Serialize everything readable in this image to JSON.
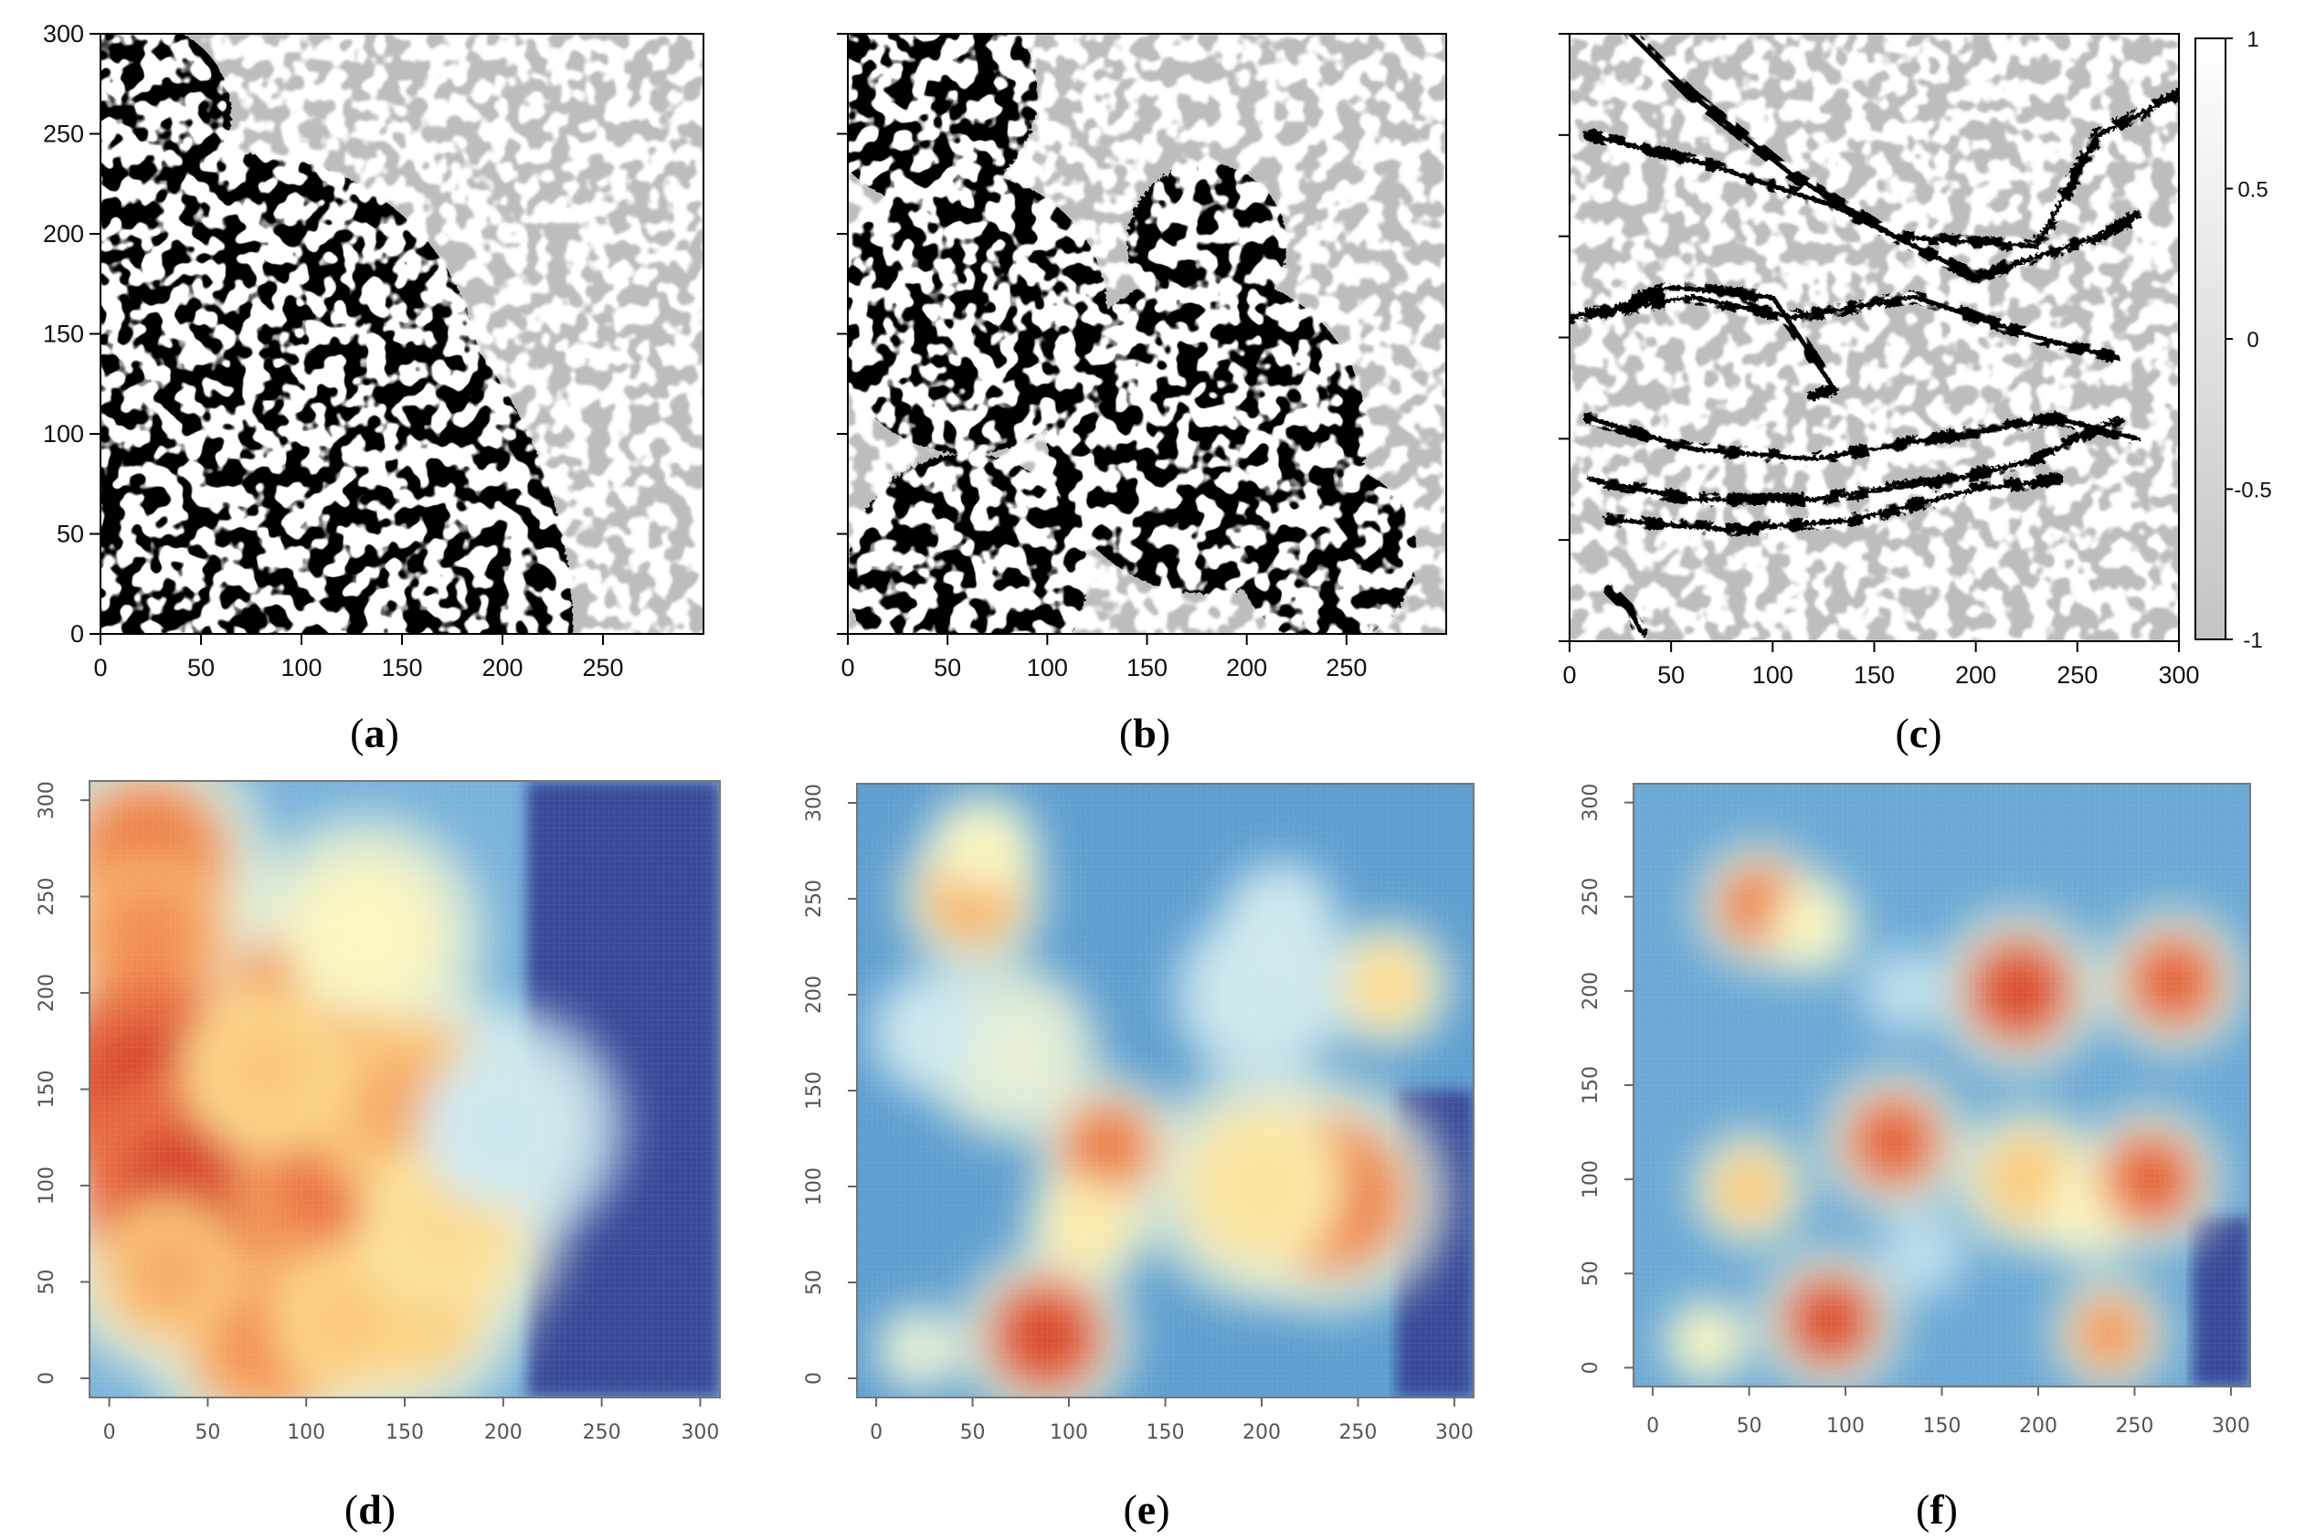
{
  "chart_data": [
    {
      "type": "heatmap",
      "panel": "(a)",
      "xticks": [
        "0",
        "50",
        "100",
        "150",
        "200",
        "250"
      ],
      "yticks": [
        "0",
        "50",
        "100",
        "150",
        "200",
        "250",
        "300"
      ],
      "xlim": [
        0,
        300
      ],
      "ylim": [
        0,
        300
      ],
      "colormap": "grayscale",
      "pattern": "labyrinthine stripes",
      "blobs": [
        {
          "x": 70,
          "y": 120,
          "r": 120,
          "v": 1
        },
        {
          "x": 20,
          "y": 260,
          "r": 45,
          "v": 1
        },
        {
          "x": 150,
          "y": 60,
          "r": 60,
          "v": 0.9
        }
      ],
      "edge": {
        "cx": 0,
        "cy": 0,
        "r": 235
      }
    },
    {
      "type": "heatmap",
      "panel": "(b)",
      "xticks": [
        "0",
        "50",
        "100",
        "150",
        "200",
        "250"
      ],
      "yticks": [],
      "xlim": [
        0,
        300
      ],
      "ylim": [
        0,
        300
      ],
      "colormap": "grayscale",
      "pattern": "labyrinthine stripes",
      "blobs": [
        {
          "x": 40,
          "y": 270,
          "r": 55,
          "v": 1
        },
        {
          "x": 60,
          "y": 160,
          "r": 70,
          "v": 1
        },
        {
          "x": 180,
          "y": 100,
          "r": 80,
          "v": 1
        },
        {
          "x": 60,
          "y": 30,
          "r": 60,
          "v": 1
        },
        {
          "x": 240,
          "y": 40,
          "r": 45,
          "v": 0.9
        },
        {
          "x": 180,
          "y": 195,
          "r": 40,
          "v": 0.8
        }
      ]
    },
    {
      "type": "heatmap",
      "panel": "(c)",
      "xticks": [
        "0",
        "50",
        "100",
        "150",
        "200",
        "250",
        "300"
      ],
      "yticks": [],
      "xlim": [
        0,
        300
      ],
      "ylim": [
        0,
        300
      ],
      "colormap": "grayscale",
      "pattern": "labyrinthine stripes",
      "colorbar": {
        "ticks": [
          "1",
          "0.5",
          "0",
          "-0.5",
          "-1"
        ],
        "range": [
          -1,
          1
        ]
      },
      "paths": [
        [
          [
            30,
            300
          ],
          [
            60,
            270
          ],
          [
            110,
            230
          ],
          [
            160,
            200
          ],
          [
            230,
            195
          ],
          [
            260,
            250
          ],
          [
            300,
            270
          ]
        ],
        [
          [
            10,
            250
          ],
          [
            70,
            235
          ],
          [
            130,
            215
          ],
          [
            200,
            180
          ],
          [
            260,
            200
          ],
          [
            280,
            210
          ]
        ],
        [
          [
            0,
            160
          ],
          [
            60,
            170
          ],
          [
            110,
            160
          ],
          [
            170,
            170
          ],
          [
            230,
            150
          ],
          [
            270,
            140
          ]
        ],
        [
          [
            10,
            160
          ],
          [
            50,
            175
          ],
          [
            100,
            170
          ],
          [
            130,
            125
          ],
          [
            120,
            120
          ]
        ],
        [
          [
            10,
            110
          ],
          [
            60,
            95
          ],
          [
            120,
            90
          ],
          [
            180,
            100
          ],
          [
            240,
            110
          ],
          [
            280,
            100
          ]
        ],
        [
          [
            10,
            80
          ],
          [
            60,
            70
          ],
          [
            120,
            70
          ],
          [
            190,
            80
          ],
          [
            230,
            90
          ],
          [
            270,
            110
          ]
        ],
        [
          [
            20,
            60
          ],
          [
            80,
            55
          ],
          [
            140,
            60
          ],
          [
            200,
            75
          ],
          [
            240,
            80
          ]
        ],
        [
          [
            20,
            25
          ],
          [
            30,
            15
          ],
          [
            35,
            5
          ]
        ]
      ]
    },
    {
      "type": "heatmap",
      "panel": "(d)",
      "xticks": [
        "0",
        "50",
        "100",
        "150",
        "200",
        "250",
        "300"
      ],
      "yticks": [
        "0",
        "50",
        "100",
        "150",
        "200",
        "250",
        "300"
      ],
      "xlim": [
        -10,
        310
      ],
      "ylim": [
        -10,
        310
      ],
      "colormap": "blue-yellow-red",
      "background": 0.32,
      "blobs": [
        {
          "x": 20,
          "y": 270,
          "r": 40,
          "v": 0.85
        },
        {
          "x": 20,
          "y": 230,
          "r": 40,
          "v": 0.8
        },
        {
          "x": 20,
          "y": 150,
          "r": 55,
          "v": 0.95
        },
        {
          "x": 40,
          "y": 100,
          "r": 55,
          "v": 0.95
        },
        {
          "x": 100,
          "y": 190,
          "r": 40,
          "v": 0.85
        },
        {
          "x": 110,
          "y": 100,
          "r": 45,
          "v": 0.85
        },
        {
          "x": 150,
          "y": 140,
          "r": 45,
          "v": 0.75
        },
        {
          "x": 80,
          "y": 20,
          "r": 40,
          "v": 0.8
        },
        {
          "x": 30,
          "y": 55,
          "r": 35,
          "v": 0.75
        },
        {
          "x": 150,
          "y": 40,
          "r": 40,
          "v": 0.7
        },
        {
          "x": 120,
          "y": 30,
          "r": 35,
          "v": 0.7
        },
        {
          "x": 170,
          "y": 80,
          "r": 40,
          "v": 0.65
        },
        {
          "x": 80,
          "y": 160,
          "r": 40,
          "v": 0.7
        },
        {
          "x": 130,
          "y": 230,
          "r": 40,
          "v": 0.55
        },
        {
          "x": 200,
          "y": 130,
          "r": 40,
          "v": 0.45
        }
      ],
      "nullregion": [
        212,
        310,
        -10,
        310
      ]
    },
    {
      "type": "heatmap",
      "panel": "(e)",
      "xticks": [
        "0",
        "50",
        "100",
        "150",
        "200",
        "250",
        "300"
      ],
      "yticks": [
        "0",
        "50",
        "100",
        "150",
        "200",
        "250",
        "300"
      ],
      "xlim": [
        -10,
        310
      ],
      "ylim": [
        -10,
        310
      ],
      "colormap": "blue-yellow-red",
      "background": 0.28,
      "blobs": [
        {
          "x": 50,
          "y": 250,
          "r": 25,
          "v": 0.75
        },
        {
          "x": 55,
          "y": 275,
          "r": 20,
          "v": 0.55
        },
        {
          "x": 120,
          "y": 120,
          "r": 25,
          "v": 0.85
        },
        {
          "x": 110,
          "y": 80,
          "r": 22,
          "v": 0.6
        },
        {
          "x": 88,
          "y": 22,
          "r": 30,
          "v": 0.95
        },
        {
          "x": 235,
          "y": 95,
          "r": 40,
          "v": 0.85
        },
        {
          "x": 200,
          "y": 100,
          "r": 40,
          "v": 0.62
        },
        {
          "x": 265,
          "y": 205,
          "r": 22,
          "v": 0.65
        },
        {
          "x": 70,
          "y": 170,
          "r": 30,
          "v": 0.5
        },
        {
          "x": 30,
          "y": 180,
          "r": 22,
          "v": 0.45
        },
        {
          "x": 200,
          "y": 200,
          "r": 30,
          "v": 0.45
        },
        {
          "x": 210,
          "y": 240,
          "r": 20,
          "v": 0.45
        },
        {
          "x": 22,
          "y": 15,
          "r": 15,
          "v": 0.5
        }
      ],
      "nullregion": [
        270,
        310,
        -10,
        150
      ]
    },
    {
      "type": "heatmap",
      "panel": "(f)",
      "xticks": [
        "0",
        "50",
        "100",
        "150",
        "200",
        "250",
        "300"
      ],
      "yticks": [
        "0",
        "50",
        "100",
        "150",
        "200",
        "250",
        "300"
      ],
      "xlim": [
        -10,
        310
      ],
      "ylim": [
        -10,
        310
      ],
      "colormap": "blue-yellow-red",
      "background": 0.3,
      "blobs": [
        {
          "x": 55,
          "y": 245,
          "r": 22,
          "v": 0.85
        },
        {
          "x": 80,
          "y": 235,
          "r": 18,
          "v": 0.55
        },
        {
          "x": 190,
          "y": 200,
          "r": 28,
          "v": 0.95
        },
        {
          "x": 270,
          "y": 205,
          "r": 25,
          "v": 0.9
        },
        {
          "x": 125,
          "y": 120,
          "r": 25,
          "v": 0.9
        },
        {
          "x": 50,
          "y": 95,
          "r": 20,
          "v": 0.7
        },
        {
          "x": 195,
          "y": 100,
          "r": 25,
          "v": 0.7
        },
        {
          "x": 225,
          "y": 85,
          "r": 20,
          "v": 0.55
        },
        {
          "x": 258,
          "y": 100,
          "r": 25,
          "v": 0.9
        },
        {
          "x": 92,
          "y": 25,
          "r": 25,
          "v": 0.95
        },
        {
          "x": 237,
          "y": 18,
          "r": 20,
          "v": 0.8
        },
        {
          "x": 28,
          "y": 14,
          "r": 15,
          "v": 0.55
        },
        {
          "x": 130,
          "y": 200,
          "r": 15,
          "v": 0.42
        },
        {
          "x": 140,
          "y": 60,
          "r": 15,
          "v": 0.42
        }
      ],
      "nullregion": [
        280,
        310,
        -10,
        80
      ]
    }
  ]
}
